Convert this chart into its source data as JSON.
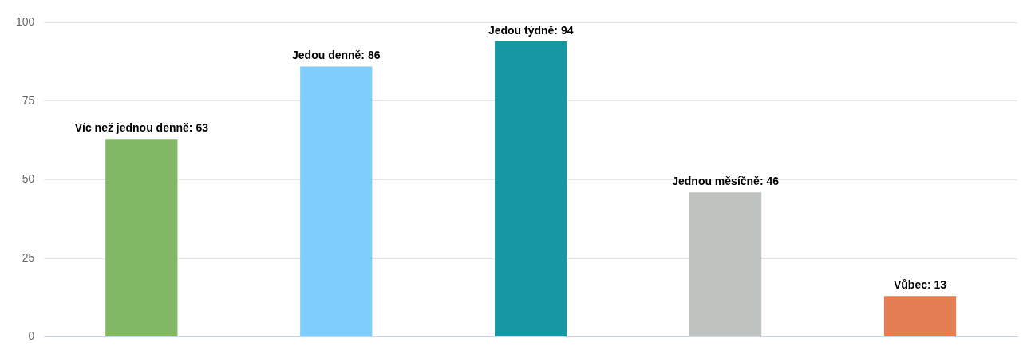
{
  "chart_data": {
    "type": "bar",
    "categories": [
      null,
      null,
      null,
      null,
      null
    ],
    "values": [
      63,
      86,
      94,
      46,
      13
    ],
    "colors": [
      "#82b865",
      "#7ecdfd",
      "#1896a4",
      "#bec3bf",
      "#e57f53"
    ],
    "value_labels": [
      "Víc než jednou denně: 63",
      "Jedou denně: 86",
      "Jedou týdně: 94",
      "Jednou měsíčně: 46",
      "Vůbec: 13"
    ],
    "ylim": [
      0,
      100
    ],
    "yticks": [
      0,
      25,
      50,
      75,
      100
    ],
    "grid": "y",
    "legend": false
  }
}
